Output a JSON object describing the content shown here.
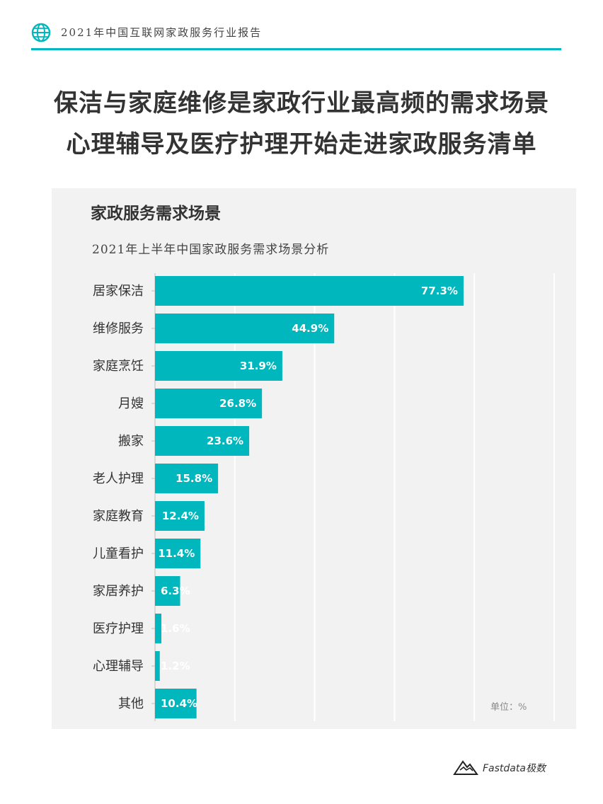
{
  "header": {
    "text": "2021年中国互联网家政服务行业报告",
    "icon": "globe-icon",
    "accent": "#00b7bd"
  },
  "headline": {
    "line1": "保洁与家庭维修是家政行业最高频的需求场景",
    "line2": "心理辅导及医疗护理开始走进家政服务清单"
  },
  "panel": {
    "title": "家政服务需求场景",
    "unit_note": "单位：%"
  },
  "chart_data": {
    "type": "bar",
    "orientation": "horizontal",
    "title": "2021年上半年中国家政服务需求场景分析",
    "categories": [
      "居家保洁",
      "维修服务",
      "家庭烹饪",
      "月嫂",
      "搬家",
      "老人护理",
      "家庭教育",
      "儿童看护",
      "家居养护",
      "医疗护理",
      "心理辅导",
      "其他"
    ],
    "values": [
      77.3,
      44.9,
      31.9,
      26.8,
      23.6,
      15.8,
      12.4,
      11.4,
      6.3,
      1.6,
      1.2,
      10.4
    ],
    "value_labels": [
      "77.3%",
      "44.9%",
      "31.9%",
      "26.8%",
      "23.6%",
      "15.8%",
      "12.4%",
      "11.4%",
      "6.3%",
      "1.6%",
      "1.2%",
      "10.4%"
    ],
    "xlim": [
      0,
      100
    ],
    "grid": true,
    "bar_color": "#00b7bd",
    "unit": "%"
  },
  "footer": {
    "brand": "Fastdata极数",
    "icon": "mountain-logo-icon"
  }
}
